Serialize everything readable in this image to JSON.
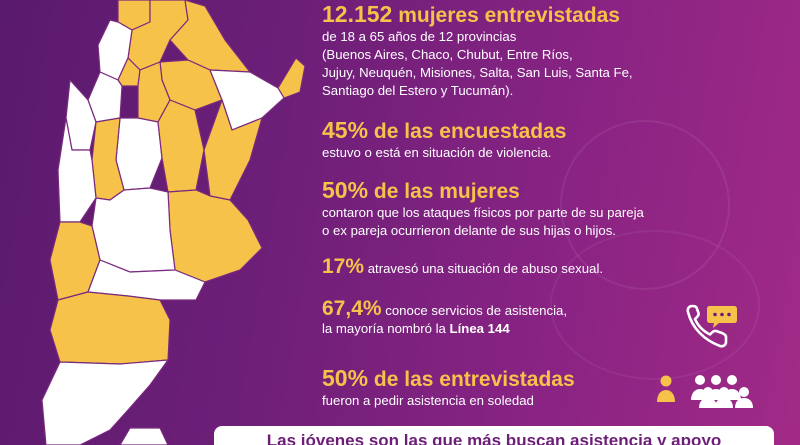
{
  "stats": {
    "interviewed": {
      "number": "12.152",
      "label": "mujeres entrevistadas",
      "desc_line1": "de 18 a 65 años de 12 provincias",
      "desc_line2": "(Buenos Aires, Chaco, Chubut, Entre Ríos,",
      "desc_line3": "Jujuy, Neuquén, Misiones, Salta, San Luis, Santa Fe,",
      "desc_line4": "Santiago del Estero y Tucumán)."
    },
    "violence": {
      "number": "45%",
      "label": "de las encuestadas",
      "desc": "estuvo o está en situación de violencia."
    },
    "attacks": {
      "number": "50%",
      "label": "de las mujeres",
      "desc_line1": "contaron que los ataques físicos por parte de su pareja",
      "desc_line2": "o ex pareja ocurrieron delante de sus hijas o hijos."
    },
    "abuse": {
      "number": "17%",
      "desc": "atravesó una situación de abuso sexual."
    },
    "services": {
      "number": "67,4%",
      "desc_line1": "conoce servicios de asistencia,",
      "desc_line2_prefix": "la mayoría nombró la",
      "desc_line2_bold": "Línea 144"
    },
    "alone": {
      "number": "50%",
      "label": "de las entrevistadas",
      "desc": "fueron a pedir asistencia en soledad"
    }
  },
  "banner": {
    "text": "Las jóvenes son las que más buscan asistencia y apoyo"
  },
  "colors": {
    "accent": "#f6c24a",
    "background": "#6d1f78",
    "map_white": "#ffffff"
  },
  "icons": [
    "phone-chat-icon",
    "people-group-icon"
  ]
}
